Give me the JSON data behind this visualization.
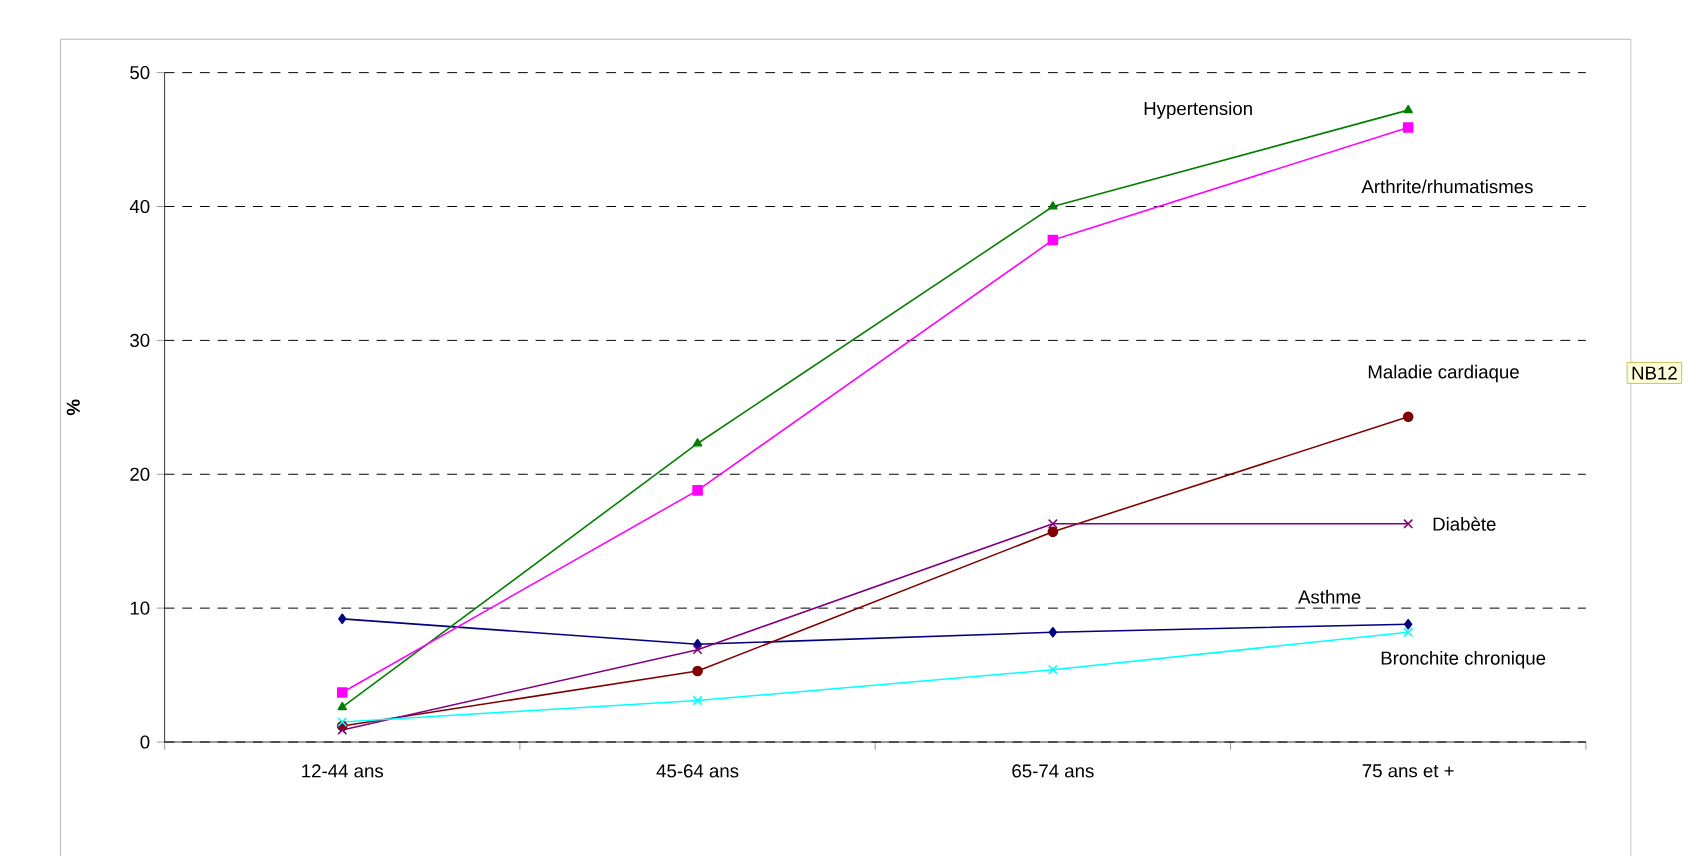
{
  "chart_data": {
    "type": "line",
    "ylabel": "%",
    "categories": [
      "12-44 ans",
      "45-64 ans",
      "65-74 ans",
      "75 ans et +"
    ],
    "series": [
      {
        "name": "Asthme",
        "color": "#000080",
        "marker": "diamond",
        "values": [
          9.2,
          7.3,
          8.2,
          8.8
        ]
      },
      {
        "name": "Hypertension",
        "color": "#008000",
        "marker": "triangle",
        "values": [
          2.6,
          22.3,
          40.0,
          47.2
        ]
      },
      {
        "name": "Arthrite/rhumatismes",
        "color": "#ff00ff",
        "marker": "square",
        "values": [
          3.7,
          18.8,
          37.5,
          45.9
        ]
      },
      {
        "name": "Maladie cardiaque",
        "color": "#800000",
        "marker": "circle",
        "values": [
          1.2,
          5.3,
          15.7,
          24.3
        ]
      },
      {
        "name": "Diabète",
        "color": "#800080",
        "marker": "cross",
        "values": [
          0.9,
          6.9,
          16.3,
          16.3
        ]
      },
      {
        "name": "Bronchite chronique",
        "color": "#00ffff",
        "marker": "cross",
        "values": [
          1.5,
          3.1,
          5.4,
          8.2
        ]
      }
    ],
    "ylim": [
      0,
      50
    ],
    "yticks": [
      0,
      10,
      20,
      30,
      40,
      50
    ],
    "grid": "y",
    "legend": false,
    "line_style": "solid",
    "annotations": [
      "NB12"
    ]
  }
}
